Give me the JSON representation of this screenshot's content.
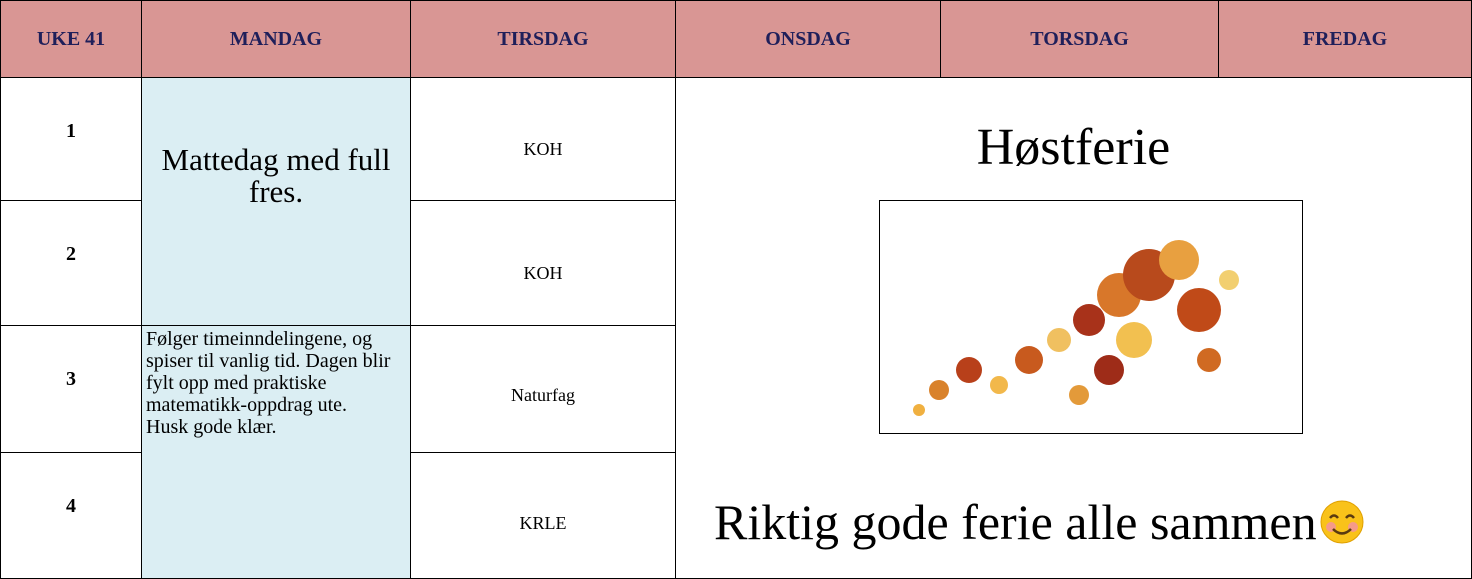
{
  "header": {
    "columns": [
      "UKE 41",
      "MANDAG",
      "TIRSDAG",
      "ONSDAG",
      "TORSDAG",
      "FREDAG"
    ]
  },
  "rows": [
    {
      "number": "1",
      "tirsdag": "KOH"
    },
    {
      "number": "2",
      "tirsdag": "KOH"
    },
    {
      "number": "3",
      "tirsdag": "Naturfag"
    },
    {
      "number": "4",
      "tirsdag": "KRLE"
    }
  ],
  "mandag": {
    "block1": "Mattedag med full fres.",
    "block2": "Følger timeinndelingene, og spiser til vanlig tid. Dagen blir fylt opp med praktiske matematikk-oppdrag ute. Husk gode klær."
  },
  "holiday": {
    "title": "Høstferie",
    "message": "Riktig gode ferie alle sammen"
  }
}
